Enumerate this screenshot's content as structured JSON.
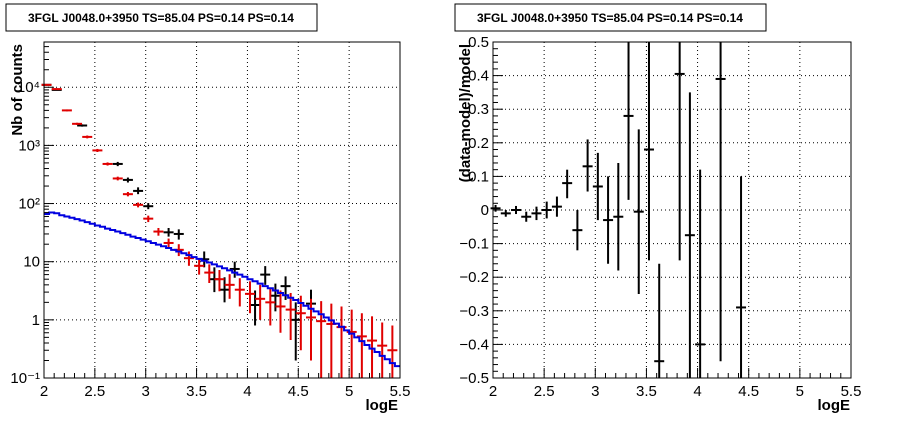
{
  "chart_data": [
    {
      "type": "scatter",
      "title": "3FGL J0048.0+3950 TS=85.04 PS=0.14 PS=0.14",
      "xlabel": "logE",
      "ylabel": "Nb of counts",
      "xlim": [
        2,
        5.5
      ],
      "ylim": [
        0.1,
        60000
      ],
      "yscale": "log",
      "grid": true,
      "x_ticks": [
        2,
        2.5,
        3,
        3.5,
        4,
        4.5,
        5,
        5.5
      ],
      "x_tick_labels": [
        "2",
        "2.5",
        "3",
        "3.5",
        "4",
        "4.5",
        "5",
        "5.5"
      ],
      "y_ticks": [
        0.1,
        1,
        10,
        100,
        1000,
        10000
      ],
      "y_tick_labels": [
        "10⁻¹",
        "1",
        "10",
        "10²",
        "10³",
        "10⁴"
      ],
      "colors": {
        "data": "#000000",
        "model_points": "#e00000",
        "source_model": "#0000e0"
      },
      "series": [
        {
          "kind": "data",
          "points": [
            {
              "x": 2.025,
              "y": 11000,
              "lo": 10800,
              "hi": 11200
            },
            {
              "x": 2.125,
              "y": 9000,
              "lo": 8800,
              "hi": 9200
            },
            {
              "x": 2.375,
              "y": 2200,
              "lo": 2100,
              "hi": 2300
            },
            {
              "x": 2.725,
              "y": 480,
              "lo": 440,
              "hi": 520
            },
            {
              "x": 2.825,
              "y": 255,
              "lo": 230,
              "hi": 280
            },
            {
              "x": 2.925,
              "y": 165,
              "lo": 145,
              "hi": 190
            },
            {
              "x": 3.025,
              "y": 90,
              "lo": 80,
              "hi": 102
            },
            {
              "x": 3.225,
              "y": 32,
              "lo": 27,
              "hi": 38
            },
            {
              "x": 3.325,
              "y": 30,
              "lo": 24,
              "hi": 36
            },
            {
              "x": 3.575,
              "y": 11,
              "lo": 8,
              "hi": 15
            },
            {
              "x": 3.675,
              "y": 5,
              "lo": 3,
              "hi": 8
            },
            {
              "x": 3.775,
              "y": 3.3,
              "lo": 2.0,
              "hi": 5.4
            },
            {
              "x": 3.875,
              "y": 7.5,
              "lo": 5.3,
              "hi": 10
            },
            {
              "x": 4.075,
              "y": 1.8,
              "lo": 0.8,
              "hi": 3.2
            },
            {
              "x": 4.175,
              "y": 6,
              "lo": 4,
              "hi": 8.4
            },
            {
              "x": 4.275,
              "y": 2.6,
              "lo": 1.4,
              "hi": 4.2
            },
            {
              "x": 4.375,
              "y": 3.8,
              "lo": 2.2,
              "hi": 5.6
            },
            {
              "x": 4.475,
              "y": 1,
              "lo": 0.2,
              "hi": 2
            },
            {
              "x": 4.625,
              "y": 1.9,
              "lo": 0.9,
              "hi": 3.3
            }
          ]
        },
        {
          "kind": "model_points",
          "points": [
            {
              "x": 2.025,
              "y": 11000,
              "lo": 10800,
              "hi": 11200
            },
            {
              "x": 2.125,
              "y": 9300,
              "lo": 9100,
              "hi": 9500
            },
            {
              "x": 2.225,
              "y": 4000,
              "lo": 3850,
              "hi": 4150
            },
            {
              "x": 2.325,
              "y": 2350,
              "lo": 2250,
              "hi": 2450
            },
            {
              "x": 2.425,
              "y": 1400,
              "lo": 1320,
              "hi": 1480
            },
            {
              "x": 2.525,
              "y": 820,
              "lo": 770,
              "hi": 870
            },
            {
              "x": 2.625,
              "y": 480,
              "lo": 450,
              "hi": 510
            },
            {
              "x": 2.725,
              "y": 270,
              "lo": 250,
              "hi": 290
            },
            {
              "x": 2.825,
              "y": 145,
              "lo": 133,
              "hi": 158
            },
            {
              "x": 2.925,
              "y": 95,
              "lo": 86,
              "hi": 104
            },
            {
              "x": 3.025,
              "y": 55,
              "lo": 48,
              "hi": 62
            },
            {
              "x": 3.125,
              "y": 33,
              "lo": 28,
              "hi": 38
            },
            {
              "x": 3.225,
              "y": 21,
              "lo": 17,
              "hi": 25
            },
            {
              "x": 3.325,
              "y": 16,
              "lo": 12.5,
              "hi": 20
            },
            {
              "x": 3.425,
              "y": 11.5,
              "lo": 8.5,
              "hi": 15
            },
            {
              "x": 3.525,
              "y": 8.5,
              "lo": 6,
              "hi": 11.5
            },
            {
              "x": 3.625,
              "y": 6.5,
              "lo": 4.3,
              "hi": 9
            },
            {
              "x": 3.725,
              "y": 5,
              "lo": 3.1,
              "hi": 7.2
            },
            {
              "x": 3.825,
              "y": 4,
              "lo": 2.3,
              "hi": 6.1
            },
            {
              "x": 3.925,
              "y": 3.3,
              "lo": 1.7,
              "hi": 5.2
            },
            {
              "x": 4.025,
              "y": 2.8,
              "lo": 1.3,
              "hi": 4.6
            },
            {
              "x": 4.125,
              "y": 2.3,
              "lo": 1.0,
              "hi": 4.0
            },
            {
              "x": 4.225,
              "y": 2.0,
              "lo": 0.8,
              "hi": 3.6
            },
            {
              "x": 4.325,
              "y": 1.7,
              "lo": 0.6,
              "hi": 3.2
            },
            {
              "x": 4.425,
              "y": 1.5,
              "lo": 0.45,
              "hi": 2.9
            },
            {
              "x": 4.525,
              "y": 1.3,
              "lo": 0.3,
              "hi": 2.6
            },
            {
              "x": 4.625,
              "y": 1.1,
              "lo": 0.2,
              "hi": 2.3
            },
            {
              "x": 4.725,
              "y": 0.95,
              "lo": 0.1,
              "hi": 2.1
            },
            {
              "x": 4.825,
              "y": 0.85,
              "lo": 0.1,
              "hi": 1.9
            },
            {
              "x": 4.925,
              "y": 0.75,
              "lo": 0.1,
              "hi": 1.7
            },
            {
              "x": 5.025,
              "y": 0.62,
              "lo": 0.1,
              "hi": 1.5
            },
            {
              "x": 5.125,
              "y": 0.52,
              "lo": 0.1,
              "hi": 1.3
            },
            {
              "x": 5.225,
              "y": 0.44,
              "lo": 0.1,
              "hi": 1.15
            },
            {
              "x": 5.325,
              "y": 0.36,
              "lo": 0.1,
              "hi": 0.9
            },
            {
              "x": 5.425,
              "y": 0.3,
              "lo": 0.1,
              "hi": 0.8
            }
          ]
        },
        {
          "kind": "source_model",
          "bin_width": 0.05,
          "x": [
            2.0,
            2.05,
            2.1,
            2.15,
            2.2,
            2.25,
            2.3,
            2.35,
            2.4,
            2.45,
            2.5,
            2.55,
            2.6,
            2.65,
            2.7,
            2.75,
            2.8,
            2.85,
            2.9,
            2.95,
            3.0,
            3.05,
            3.1,
            3.15,
            3.2,
            3.25,
            3.3,
            3.35,
            3.4,
            3.45,
            3.5,
            3.55,
            3.6,
            3.65,
            3.7,
            3.75,
            3.8,
            3.85,
            3.9,
            3.95,
            4.0,
            4.05,
            4.1,
            4.15,
            4.2,
            4.25,
            4.3,
            4.35,
            4.4,
            4.45,
            4.5,
            4.55,
            4.6,
            4.65,
            4.7,
            4.75,
            4.8,
            4.85,
            4.9,
            4.95,
            5.0,
            5.05,
            5.1,
            5.15,
            5.2,
            5.25,
            5.3,
            5.35,
            5.4,
            5.45
          ],
          "values": [
            66,
            70,
            68,
            63,
            60,
            57,
            54,
            51,
            48,
            45,
            42,
            40,
            37,
            35,
            33,
            31,
            29,
            27,
            25.5,
            24,
            22.5,
            21,
            19.7,
            18.4,
            17.2,
            16,
            15,
            14,
            13,
            12,
            11.2,
            10.4,
            9.7,
            9.0,
            8.3,
            7.7,
            7.1,
            6.5,
            6.0,
            5.5,
            5.0,
            4.6,
            4.2,
            3.8,
            3.5,
            3.2,
            2.9,
            2.65,
            2.4,
            2.2,
            1.95,
            1.75,
            1.55,
            1.4,
            1.25,
            1.1,
            0.98,
            0.86,
            0.76,
            0.66,
            0.58,
            0.5,
            0.43,
            0.37,
            0.32,
            0.28,
            0.24,
            0.21,
            0.18,
            0.16
          ]
        }
      ]
    },
    {
      "type": "scatter",
      "title": "3FGL J0048.0+3950 TS=85.04 PS=0.14 PS=0.14",
      "xlabel": "logE",
      "ylabel": "(data-model)/model",
      "xlim": [
        2,
        5.5
      ],
      "ylim": [
        -0.5,
        0.5
      ],
      "grid": true,
      "x_ticks": [
        2,
        2.5,
        3,
        3.5,
        4,
        4.5,
        5,
        5.5
      ],
      "x_tick_labels": [
        "2",
        "2.5",
        "3",
        "3.5",
        "4",
        "4.5",
        "5",
        "5.5"
      ],
      "y_ticks": [
        -0.5,
        -0.4,
        -0.3,
        -0.2,
        -0.1,
        0,
        0.1,
        0.2,
        0.3,
        0.4,
        0.5
      ],
      "y_tick_labels": [
        "−0.5",
        "−0.4",
        "−0.3",
        "−0.2",
        "−0.1",
        "0",
        "0.1",
        "0.2",
        "0.3",
        "0.4",
        "0.5"
      ],
      "colors": {
        "data": "#000000"
      },
      "series": [
        {
          "kind": "residuals",
          "points": [
            {
              "x": 2.025,
              "y": 0.005,
              "lo": -0.005,
              "hi": 0.015
            },
            {
              "x": 2.125,
              "y": -0.01,
              "lo": -0.02,
              "hi": 0.0
            },
            {
              "x": 2.225,
              "y": 0.0,
              "lo": -0.012,
              "hi": 0.012
            },
            {
              "x": 2.325,
              "y": -0.02,
              "lo": -0.035,
              "hi": -0.005
            },
            {
              "x": 2.425,
              "y": -0.01,
              "lo": -0.03,
              "hi": 0.01
            },
            {
              "x": 2.525,
              "y": 0.0,
              "lo": -0.025,
              "hi": 0.025
            },
            {
              "x": 2.625,
              "y": 0.01,
              "lo": -0.02,
              "hi": 0.04
            },
            {
              "x": 2.725,
              "y": 0.08,
              "lo": 0.035,
              "hi": 0.12
            },
            {
              "x": 2.825,
              "y": -0.06,
              "lo": -0.12,
              "hi": 0.0
            },
            {
              "x": 2.925,
              "y": 0.13,
              "lo": 0.055,
              "hi": 0.21
            },
            {
              "x": 3.025,
              "y": 0.07,
              "lo": -0.03,
              "hi": 0.17
            },
            {
              "x": 3.125,
              "y": -0.03,
              "lo": -0.16,
              "hi": 0.1
            },
            {
              "x": 3.225,
              "y": -0.02,
              "lo": -0.18,
              "hi": 0.14
            },
            {
              "x": 3.325,
              "y": 0.28,
              "lo": 0.03,
              "hi": 0.5
            },
            {
              "x": 3.425,
              "y": -0.005,
              "lo": -0.25,
              "hi": 0.24
            },
            {
              "x": 3.525,
              "y": 0.18,
              "lo": -0.15,
              "hi": 0.5
            },
            {
              "x": 3.625,
              "y": -0.45,
              "lo": -0.5,
              "hi": -0.16
            },
            {
              "x": 3.825,
              "y": 0.405,
              "lo": -0.15,
              "hi": 0.5
            },
            {
              "x": 3.925,
              "y": -0.075,
              "lo": -0.5,
              "hi": 0.35
            },
            {
              "x": 4.025,
              "y": -0.4,
              "lo": -0.5,
              "hi": 0.12
            },
            {
              "x": 4.225,
              "y": 0.39,
              "lo": -0.45,
              "hi": 0.5
            },
            {
              "x": 4.425,
              "y": -0.29,
              "lo": -0.5,
              "hi": 0.1
            }
          ]
        }
      ]
    }
  ]
}
